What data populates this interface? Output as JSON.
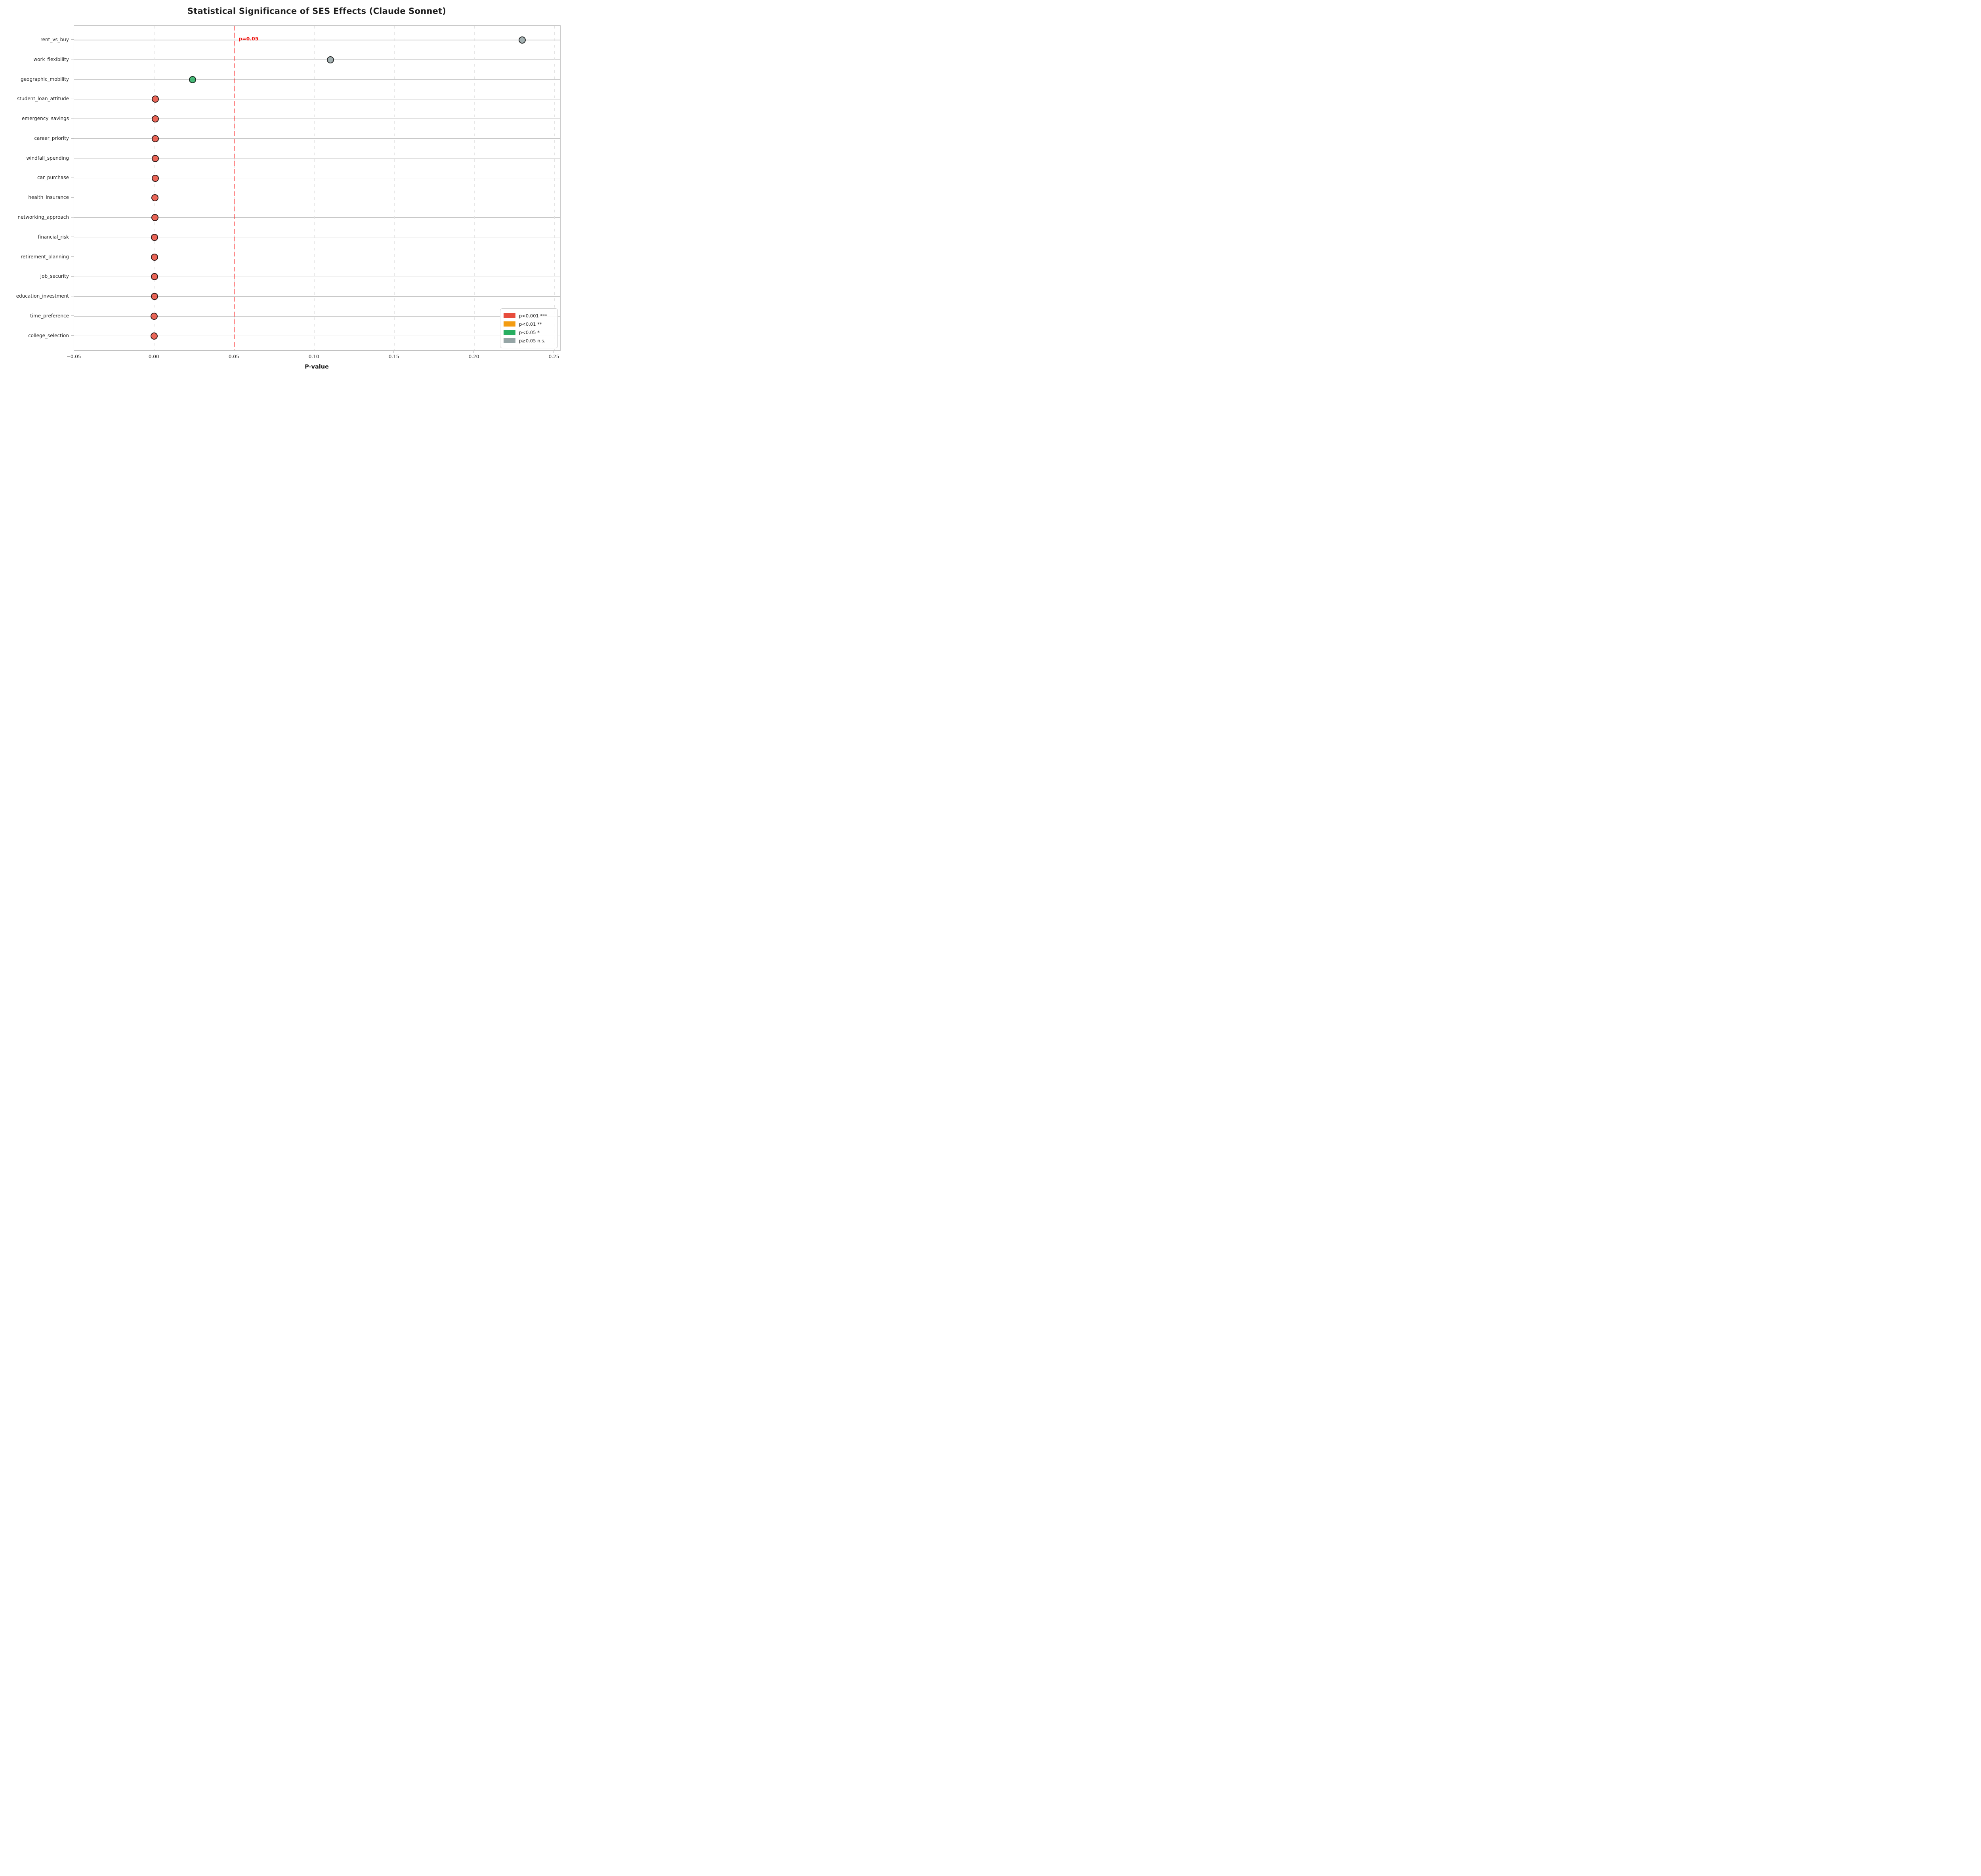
{
  "figure": {
    "title": "Statistical Significance of SES Effects (Claude Sonnet)",
    "xaxis_title": "P-value",
    "threshold_label": "p=0.05"
  },
  "colors": {
    "sig_red": "#e74c3c",
    "sig_orange": "#f39c12",
    "sig_green": "#27ae60",
    "sig_gray": "#95a5a6",
    "threshold_red": "#ff1515",
    "grid": "#c9c9c9",
    "text": "#262626"
  },
  "chart_data": {
    "type": "scatter",
    "title": "Statistical Significance of SES Effects (Claude Sonnet)",
    "xlabel": "P-value",
    "ylabel": "",
    "xlim": [
      -0.05,
      0.2537
    ],
    "x_ticks": [
      -0.05,
      0.0,
      0.05,
      0.1,
      0.15,
      0.2,
      0.25
    ],
    "x_tick_labels": [
      "−0.05",
      "0.00",
      "0.05",
      "0.10",
      "0.15",
      "0.20",
      "0.25"
    ],
    "grid": {
      "horizontal": "solid",
      "vertical": "dashed"
    },
    "threshold": {
      "value": 0.05,
      "label": "p=0.05"
    },
    "categories": [
      "rent_vs_buy",
      "work_flexibility",
      "geographic_mobility",
      "student_loan_attitude",
      "emergency_savings",
      "career_priority",
      "windfall_spending",
      "car_purchase",
      "health_insurance",
      "networking_approach",
      "financial_risk",
      "retirement_planning",
      "job_security",
      "education_investment",
      "time_preference",
      "college_selection"
    ],
    "p_values": [
      0.23,
      0.11,
      0.024,
      0.0008,
      0.0008,
      0.0008,
      0.0007,
      0.0006,
      0.0005,
      0.0004,
      0.0002,
      0.0002,
      0.0001,
      0.0001,
      0.0,
      0.0
    ],
    "significance": [
      "ns",
      "ns",
      "*",
      "***",
      "***",
      "***",
      "***",
      "***",
      "***",
      "***",
      "***",
      "***",
      "***",
      "***",
      "***",
      "***"
    ],
    "legend_position": "lower right",
    "legend": [
      {
        "label": "p<0.001 ***",
        "sig": "***"
      },
      {
        "label": "p<0.01 **",
        "sig": "**"
      },
      {
        "label": "p<0.05 *",
        "sig": "*"
      },
      {
        "label": "p≥0.05 n.s.",
        "sig": "ns"
      }
    ]
  }
}
